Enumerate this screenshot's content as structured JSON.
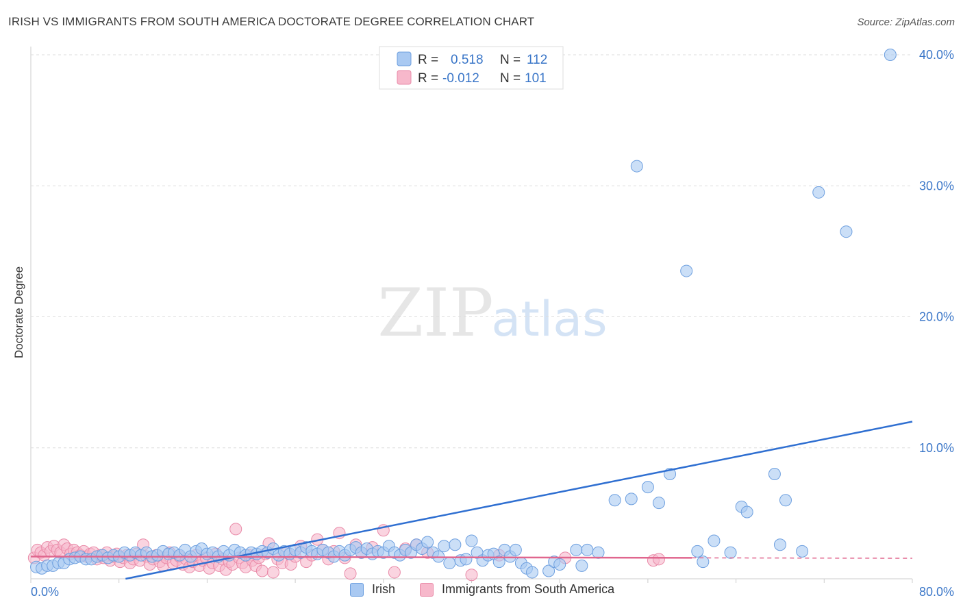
{
  "header": {
    "title": "IRISH VS IMMIGRANTS FROM SOUTH AMERICA DOCTORATE DEGREE CORRELATION CHART",
    "source": "Source: ZipAtlas.com"
  },
  "watermark": {
    "zip": "ZIP",
    "atlas": "atlas"
  },
  "colors": {
    "irish_fill": "#a9c9f2",
    "irish_stroke": "#6d9fdf",
    "irish_line": "#2f6fd1",
    "sa_fill": "#f7b8cb",
    "sa_stroke": "#e98aa8",
    "sa_line": "#e0668e",
    "axis_text": "#3a76c8",
    "grid": "#dddddd"
  },
  "legend_top": {
    "rows": [
      {
        "r_label": "R =",
        "r_value": "0.518",
        "n_label": "N =",
        "n_value": "112"
      },
      {
        "r_label": "R =",
        "r_value": "-0.012",
        "n_label": "N =",
        "n_value": "101"
      }
    ]
  },
  "legend_bottom": {
    "irish": "Irish",
    "sa": "Immigrants from South America"
  },
  "chart_data": {
    "type": "scatter",
    "title": "IRISH VS IMMIGRANTS FROM SOUTH AMERICA DOCTORATE DEGREE CORRELATION CHART",
    "xlabel": "",
    "ylabel": "Doctorate Degree",
    "xlim": [
      0,
      80
    ],
    "ylim": [
      0,
      40
    ],
    "x_tick_labels": [
      "0.0%",
      "80.0%"
    ],
    "y_ticks": [
      10,
      20,
      30,
      40
    ],
    "y_tick_labels": [
      "10.0%",
      "20.0%",
      "30.0%",
      "40.0%"
    ],
    "grid": true,
    "legend_placement": "top-center",
    "series": [
      {
        "name": "Irish",
        "r": 0.518,
        "n": 112,
        "trend": {
          "x": [
            8.6,
            80
          ],
          "y": [
            0,
            12.0
          ]
        },
        "points": [
          [
            0.5,
            0.9
          ],
          [
            1.0,
            0.8
          ],
          [
            1.5,
            1.0
          ],
          [
            2.0,
            1.0
          ],
          [
            2.5,
            1.2
          ],
          [
            3.0,
            1.2
          ],
          [
            3.5,
            1.5
          ],
          [
            4.0,
            1.6
          ],
          [
            4.5,
            1.7
          ],
          [
            5.0,
            1.5
          ],
          [
            5.5,
            1.5
          ],
          [
            6.0,
            1.7
          ],
          [
            6.5,
            1.8
          ],
          [
            7.0,
            1.6
          ],
          [
            7.5,
            1.8
          ],
          [
            8.0,
            1.7
          ],
          [
            8.5,
            2.0
          ],
          [
            9.0,
            1.8
          ],
          [
            9.5,
            2.0
          ],
          [
            10.0,
            1.8
          ],
          [
            10.5,
            2.0
          ],
          [
            11.0,
            1.7
          ],
          [
            11.5,
            1.8
          ],
          [
            12.0,
            2.1
          ],
          [
            12.5,
            1.9
          ],
          [
            13.0,
            2.0
          ],
          [
            13.5,
            1.8
          ],
          [
            14.0,
            2.2
          ],
          [
            14.5,
            1.7
          ],
          [
            15.0,
            2.1
          ],
          [
            15.5,
            2.3
          ],
          [
            16.0,
            1.9
          ],
          [
            16.5,
            2.0
          ],
          [
            17.0,
            1.7
          ],
          [
            17.5,
            2.1
          ],
          [
            18.0,
            1.8
          ],
          [
            18.5,
            2.2
          ],
          [
            19.0,
            2.0
          ],
          [
            19.5,
            1.8
          ],
          [
            20.0,
            2.0
          ],
          [
            20.5,
            1.9
          ],
          [
            21.0,
            2.1
          ],
          [
            21.5,
            2.0
          ],
          [
            22.0,
            2.3
          ],
          [
            22.5,
            1.8
          ],
          [
            23.0,
            2.1
          ],
          [
            23.5,
            1.9
          ],
          [
            24.0,
            2.2
          ],
          [
            24.5,
            2.0
          ],
          [
            25.0,
            2.4
          ],
          [
            25.5,
            2.1
          ],
          [
            26.0,
            1.9
          ],
          [
            26.5,
            2.2
          ],
          [
            27.0,
            2.0
          ],
          [
            27.5,
            1.7
          ],
          [
            28.0,
            2.1
          ],
          [
            28.5,
            1.8
          ],
          [
            29.0,
            2.2
          ],
          [
            29.5,
            2.4
          ],
          [
            30.0,
            2.0
          ],
          [
            30.5,
            2.3
          ],
          [
            31.0,
            1.9
          ],
          [
            31.5,
            2.1
          ],
          [
            32.0,
            2.0
          ],
          [
            32.5,
            2.5
          ],
          [
            33.0,
            2.0
          ],
          [
            33.5,
            1.8
          ],
          [
            34.0,
            2.2
          ],
          [
            34.5,
            2.0
          ],
          [
            35.0,
            2.6
          ],
          [
            35.5,
            2.3
          ],
          [
            36.0,
            2.8
          ],
          [
            36.5,
            2.0
          ],
          [
            37.0,
            1.7
          ],
          [
            37.5,
            2.5
          ],
          [
            38.0,
            1.2
          ],
          [
            38.5,
            2.6
          ],
          [
            39.0,
            1.4
          ],
          [
            39.5,
            1.5
          ],
          [
            40.0,
            2.9
          ],
          [
            40.5,
            2.0
          ],
          [
            41.0,
            1.4
          ],
          [
            41.5,
            1.8
          ],
          [
            42.0,
            1.9
          ],
          [
            42.5,
            1.3
          ],
          [
            43.0,
            2.2
          ],
          [
            43.5,
            1.7
          ],
          [
            44.0,
            2.2
          ],
          [
            44.5,
            1.2
          ],
          [
            45.0,
            0.8
          ],
          [
            45.5,
            0.5
          ],
          [
            47.0,
            0.6
          ],
          [
            47.5,
            1.3
          ],
          [
            48.0,
            1.1
          ],
          [
            49.5,
            2.2
          ],
          [
            50.5,
            2.2
          ],
          [
            50.0,
            1.0
          ],
          [
            51.5,
            2.0
          ],
          [
            53.0,
            6.0
          ],
          [
            54.5,
            6.1
          ],
          [
            56.0,
            7.0
          ],
          [
            57.0,
            5.8
          ],
          [
            58.0,
            8.0
          ],
          [
            60.5,
            2.1
          ],
          [
            61.0,
            1.3
          ],
          [
            62.0,
            2.9
          ],
          [
            63.5,
            2.0
          ],
          [
            64.5,
            5.5
          ],
          [
            65.0,
            5.1
          ],
          [
            67.5,
            8.0
          ],
          [
            68.0,
            2.6
          ],
          [
            68.5,
            6.0
          ],
          [
            70.0,
            2.1
          ],
          [
            55.0,
            31.5
          ],
          [
            59.5,
            23.5
          ],
          [
            71.5,
            29.5
          ],
          [
            74.0,
            26.5
          ],
          [
            78.0,
            40.0
          ]
        ]
      },
      {
        "name": "Immigrants from South America",
        "r": -0.012,
        "n": 101,
        "trend": {
          "x": [
            0,
            60
          ],
          "y": [
            1.7,
            1.6
          ],
          "dashed_extension_to": 80
        },
        "points": [
          [
            0.3,
            1.6
          ],
          [
            0.6,
            2.2
          ],
          [
            0.9,
            2.0
          ],
          [
            1.2,
            1.8
          ],
          [
            1.5,
            2.4
          ],
          [
            1.8,
            2.1
          ],
          [
            2.1,
            2.5
          ],
          [
            2.4,
            2.2
          ],
          [
            2.7,
            2.0
          ],
          [
            3.0,
            2.6
          ],
          [
            3.3,
            2.3
          ],
          [
            3.6,
            1.9
          ],
          [
            3.9,
            2.2
          ],
          [
            4.2,
            2.0
          ],
          [
            4.5,
            1.8
          ],
          [
            4.8,
            2.1
          ],
          [
            5.1,
            1.7
          ],
          [
            5.4,
            1.9
          ],
          [
            5.7,
            2.0
          ],
          [
            6.0,
            1.5
          ],
          [
            6.3,
            1.8
          ],
          [
            6.6,
            1.6
          ],
          [
            6.9,
            2.0
          ],
          [
            7.2,
            1.4
          ],
          [
            7.5,
            1.7
          ],
          [
            7.8,
            1.9
          ],
          [
            8.1,
            1.3
          ],
          [
            8.4,
            1.6
          ],
          [
            8.7,
            1.8
          ],
          [
            9.0,
            1.2
          ],
          [
            9.3,
            1.5
          ],
          [
            9.6,
            1.9
          ],
          [
            9.9,
            1.4
          ],
          [
            10.2,
            2.6
          ],
          [
            10.5,
            1.7
          ],
          [
            10.8,
            1.1
          ],
          [
            11.1,
            1.5
          ],
          [
            11.4,
            1.8
          ],
          [
            11.7,
            1.3
          ],
          [
            12.0,
            1.0
          ],
          [
            12.3,
            1.6
          ],
          [
            12.6,
            2.0
          ],
          [
            12.9,
            1.2
          ],
          [
            13.2,
            1.4
          ],
          [
            13.5,
            1.7
          ],
          [
            13.8,
            1.1
          ],
          [
            14.1,
            1.5
          ],
          [
            14.4,
            0.9
          ],
          [
            14.7,
            1.3
          ],
          [
            15.0,
            1.8
          ],
          [
            15.3,
            1.0
          ],
          [
            15.6,
            1.4
          ],
          [
            15.9,
            1.6
          ],
          [
            16.2,
            0.8
          ],
          [
            16.5,
            1.2
          ],
          [
            16.8,
            1.9
          ],
          [
            17.1,
            1.0
          ],
          [
            17.4,
            1.5
          ],
          [
            17.7,
            0.7
          ],
          [
            18.0,
            1.3
          ],
          [
            18.3,
            1.1
          ],
          [
            18.6,
            3.8
          ],
          [
            18.9,
            1.6
          ],
          [
            19.2,
            1.2
          ],
          [
            19.5,
            0.9
          ],
          [
            19.8,
            1.8
          ],
          [
            20.1,
            1.4
          ],
          [
            20.4,
            1.0
          ],
          [
            20.7,
            1.6
          ],
          [
            21.0,
            0.6
          ],
          [
            21.3,
            1.9
          ],
          [
            21.6,
            2.7
          ],
          [
            22.0,
            0.5
          ],
          [
            22.4,
            1.5
          ],
          [
            22.8,
            1.2
          ],
          [
            23.2,
            2.0
          ],
          [
            23.6,
            1.1
          ],
          [
            24.0,
            1.7
          ],
          [
            24.5,
            2.5
          ],
          [
            25.0,
            1.3
          ],
          [
            25.5,
            1.8
          ],
          [
            26.0,
            3.0
          ],
          [
            26.5,
            2.2
          ],
          [
            27.0,
            1.5
          ],
          [
            27.5,
            2.1
          ],
          [
            28.0,
            3.5
          ],
          [
            28.5,
            1.6
          ],
          [
            29.0,
            0.4
          ],
          [
            29.5,
            2.6
          ],
          [
            30.0,
            2.0
          ],
          [
            31.0,
            2.4
          ],
          [
            32.0,
            3.7
          ],
          [
            33.0,
            0.5
          ],
          [
            34.0,
            2.3
          ],
          [
            35.0,
            2.6
          ],
          [
            36.0,
            2.0
          ],
          [
            40.0,
            0.3
          ],
          [
            42.5,
            1.8
          ],
          [
            48.5,
            1.6
          ],
          [
            56.5,
            1.4
          ],
          [
            57.0,
            1.5
          ]
        ]
      }
    ]
  }
}
